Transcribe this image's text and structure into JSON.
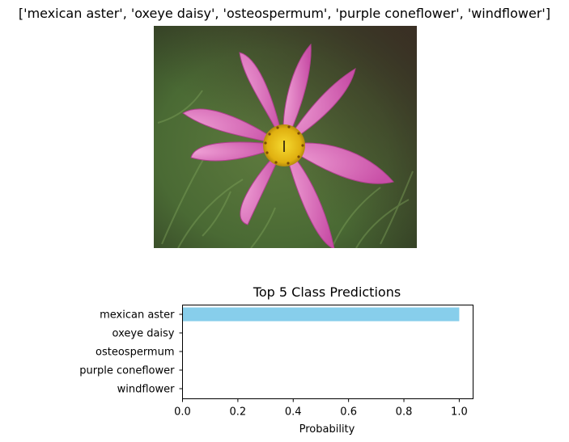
{
  "figure_title": "['mexican aster', 'oxeye daisy', 'osteospermum', 'purple coneflower', 'windflower']",
  "photo_subject": "pink-cosmos-flower-photo",
  "chart_data": {
    "type": "bar",
    "orientation": "horizontal",
    "title": "Top 5 Class Predictions",
    "xlabel": "Probability",
    "ylabel": "",
    "categories": [
      "mexican aster",
      "oxeye daisy",
      "osteospermum",
      "purple coneflower",
      "windflower"
    ],
    "values": [
      1.0,
      0.0,
      0.0,
      0.0,
      0.0
    ],
    "xlim": [
      0,
      1.05
    ],
    "xticks": [
      0.0,
      0.2,
      0.4,
      0.6,
      0.8,
      1.0
    ],
    "xtick_labels": [
      "0.0",
      "0.2",
      "0.4",
      "0.6",
      "0.8",
      "1.0"
    ],
    "bar_color": "#87ceeb",
    "grid": false
  }
}
